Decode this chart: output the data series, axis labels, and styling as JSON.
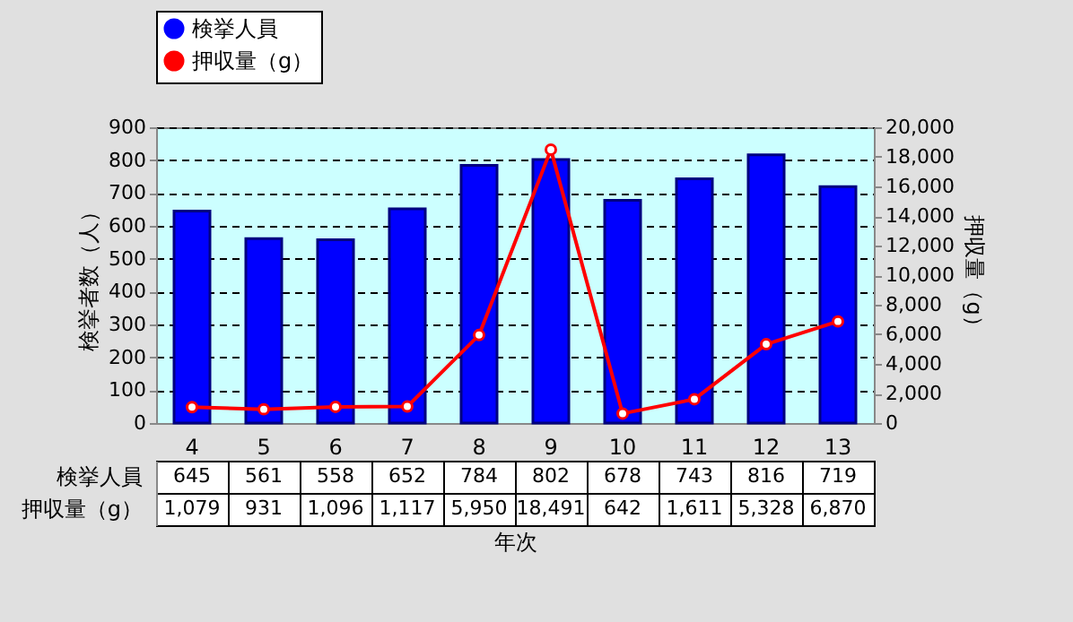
{
  "chart_data": {
    "type": "bar",
    "xlabel": "年次",
    "ylabel": "検挙者数（人）",
    "y2label": "押収量（g）",
    "categories": [
      "4",
      "5",
      "6",
      "7",
      "8",
      "9",
      "10",
      "11",
      "12",
      "13"
    ],
    "series": [
      {
        "name": "検挙人員",
        "color": "#0000ff",
        "values": [
          645,
          561,
          558,
          652,
          784,
          802,
          678,
          743,
          816,
          719
        ],
        "value_labels": [
          "645",
          "561",
          "558",
          "652",
          "784",
          "802",
          "678",
          "743",
          "816",
          "719"
        ]
      },
      {
        "name": "押収量（g）",
        "type": "line",
        "axis": "y2",
        "color": "#ff0000",
        "marker": "circle",
        "values": [
          1079,
          931,
          1096,
          1117,
          5950,
          18491,
          642,
          1611,
          5328,
          6870
        ],
        "value_labels": [
          "1,079",
          "931",
          "1,096",
          "1,117",
          "5,950",
          "18,491",
          "642",
          "1,611",
          "5,328",
          "6,870"
        ]
      }
    ],
    "ylim": [
      0,
      900
    ],
    "yticks": [
      0,
      100,
      200,
      300,
      400,
      500,
      600,
      700,
      800,
      900
    ],
    "y2lim": [
      0,
      20000
    ],
    "y2ticks": [
      0,
      {
        "value": 2000,
        "label": "2,000"
      },
      {
        "value": 4000,
        "label": "4,000"
      },
      {
        "value": 6000,
        "label": "6,000"
      },
      {
        "value": 8000,
        "label": "8,000"
      },
      {
        "value": 10000,
        "label": "10,000"
      },
      {
        "value": 12000,
        "label": "12,000"
      },
      {
        "value": 14000,
        "label": "14,000"
      },
      {
        "value": 16000,
        "label": "16,000"
      },
      {
        "value": 18000,
        "label": "18,000"
      },
      {
        "value": 20000,
        "label": "20,000"
      }
    ],
    "grid": "y",
    "legend": "top"
  }
}
